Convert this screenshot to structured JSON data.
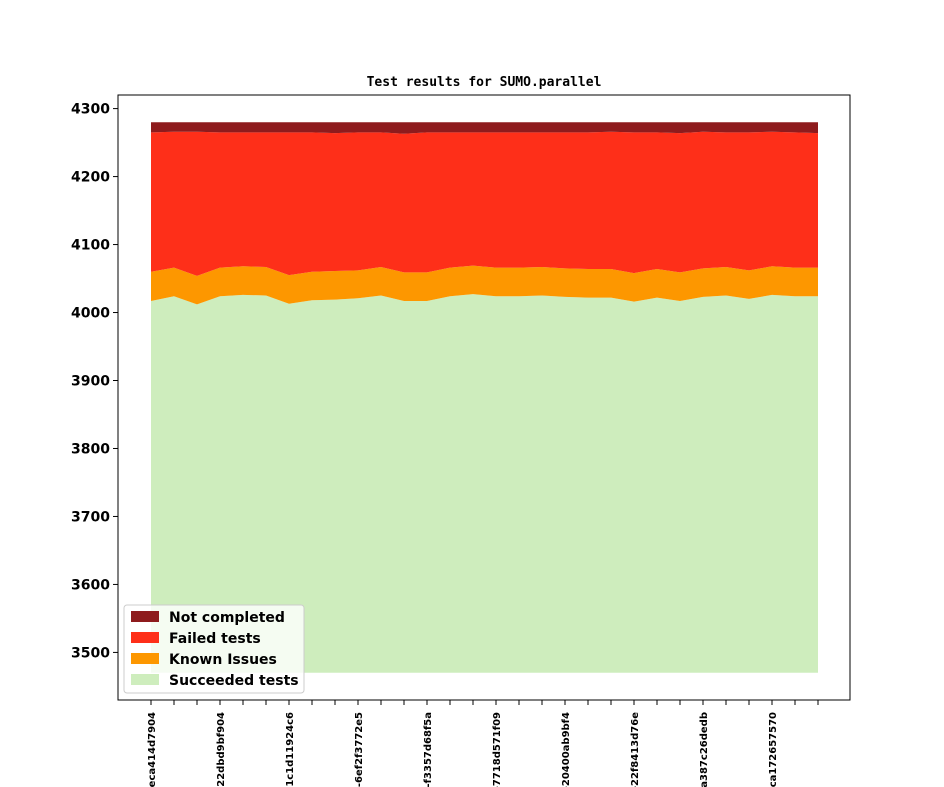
{
  "chart_data": {
    "type": "area",
    "stacked": true,
    "title": "Test results for SUMO.parallel",
    "xlabel": "",
    "ylabel": "",
    "ylim": [
      3430,
      4320
    ],
    "y_baseline": 3470,
    "yticks": [
      3500,
      3600,
      3700,
      3800,
      3900,
      4000,
      4100,
      4200,
      4300
    ],
    "n_points": 30,
    "x_tick_labels": [
      {
        "index": 0,
        "label": "-eca414d7904"
      },
      {
        "index": 3,
        "label": "-22dbd9bf904"
      },
      {
        "index": 6,
        "label": "-1c1d11924c6"
      },
      {
        "index": 9,
        "label": "-6ef2f3772e5"
      },
      {
        "index": 12,
        "label": "-f3357d68f5a"
      },
      {
        "index": 15,
        "label": "-7718d571f09"
      },
      {
        "index": 18,
        "label": "-20400ab9bf4"
      },
      {
        "index": 21,
        "label": "-22f8413d76e"
      },
      {
        "index": 24,
        "label": "a387c26dedb"
      },
      {
        "index": 27,
        "label": "-ca172657570"
      }
    ],
    "grid": false,
    "legend_position": "lower-left",
    "series": [
      {
        "name": "Succeeded tests",
        "color": "#ceedbd",
        "values": [
          4017,
          4024,
          4012,
          4024,
          4026,
          4025,
          4013,
          4018,
          4019,
          4021,
          4025,
          4017,
          4017,
          4024,
          4027,
          4024,
          4024,
          4025,
          4023,
          4022,
          4022,
          4016,
          4022,
          4017,
          4023,
          4025,
          4020,
          4026,
          4024,
          4024
        ]
      },
      {
        "name": "Known Issues",
        "color": "#fd9700",
        "values": [
          4060,
          4066,
          4054,
          4066,
          4068,
          4067,
          4055,
          4060,
          4061,
          4062,
          4067,
          4059,
          4059,
          4066,
          4069,
          4066,
          4066,
          4067,
          4065,
          4064,
          4064,
          4058,
          4064,
          4059,
          4065,
          4067,
          4062,
          4068,
          4066,
          4066
        ]
      },
      {
        "name": "Failed tests",
        "color": "#fe2f19",
        "values": [
          4265,
          4266,
          4266,
          4265,
          4265,
          4265,
          4265,
          4265,
          4264,
          4265,
          4265,
          4263,
          4265,
          4265,
          4265,
          4265,
          4265,
          4265,
          4265,
          4265,
          4266,
          4265,
          4265,
          4264,
          4266,
          4265,
          4265,
          4266,
          4265,
          4264
        ]
      },
      {
        "name": "Not completed",
        "color": "#8e1b1d",
        "values": [
          4280,
          4280,
          4280,
          4280,
          4280,
          4280,
          4280,
          4280,
          4280,
          4280,
          4280,
          4280,
          4280,
          4280,
          4280,
          4280,
          4280,
          4280,
          4280,
          4280,
          4280,
          4280,
          4280,
          4280,
          4280,
          4280,
          4280,
          4280,
          4280,
          4280
        ]
      }
    ],
    "legend_order": [
      "Not completed",
      "Failed tests",
      "Known Issues",
      "Succeeded tests"
    ]
  }
}
